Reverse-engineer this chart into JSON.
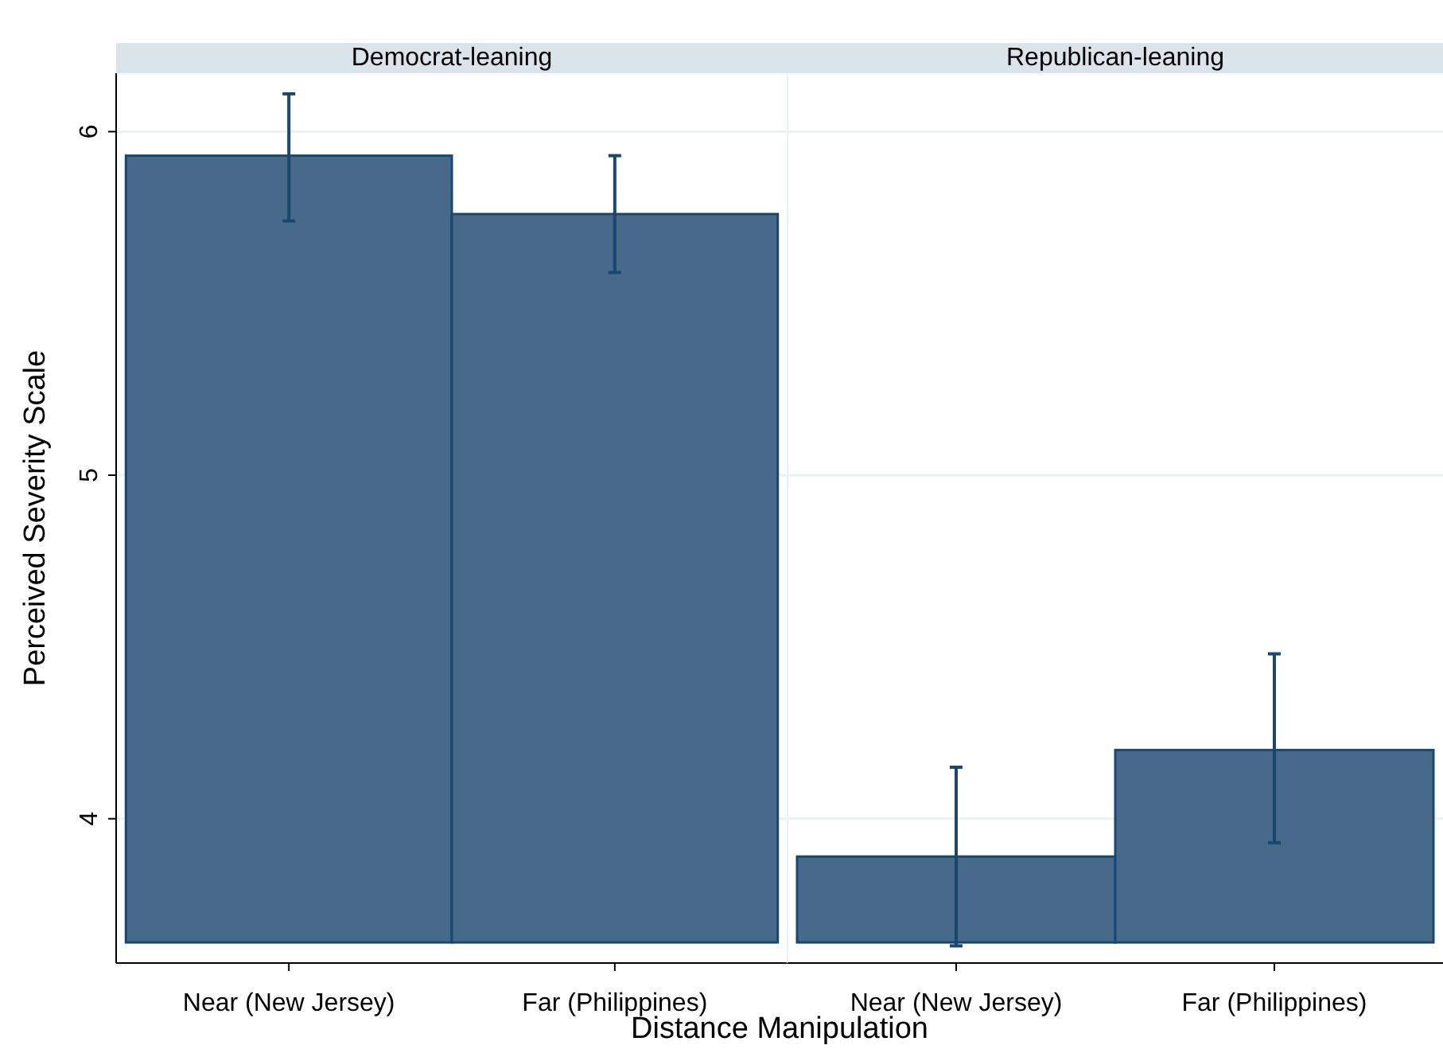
{
  "chart_data": [
    {
      "type": "bar",
      "title": "Democrat-leaning",
      "xlabel": "Distance Manipulation",
      "ylabel": "Perceived Severity Scale",
      "categories": [
        "Near (New Jersey)",
        "Far (Philippines)"
      ],
      "values": [
        2.29,
        2.12
      ],
      "base": [
        3.64,
        3.64
      ],
      "errors": [
        [
          5.74,
          6.11
        ],
        [
          5.59,
          5.93
        ]
      ],
      "color": "#476a8a",
      "ylim": [
        3.58,
        6.17
      ],
      "yticks": [
        4,
        5,
        6
      ],
      "grid": "y"
    },
    {
      "type": "bar",
      "title": "Republican-leaning",
      "categories": [
        "Near (New Jersey)",
        "Far (Philippines)"
      ],
      "values": [
        0.25,
        0.56
      ],
      "base": [
        3.64,
        3.64
      ],
      "errors": [
        [
          3.63,
          4.15
        ],
        [
          3.93,
          4.48
        ]
      ],
      "color": "#476a8a",
      "ylim": [
        3.58,
        6.17
      ],
      "yticks": [
        4,
        5,
        6
      ],
      "grid": "y",
      "tick_labels": "x"
    }
  ]
}
